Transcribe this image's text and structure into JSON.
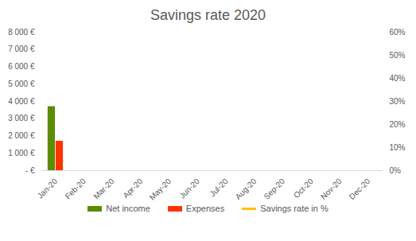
{
  "chart_data": {
    "type": "bar",
    "title": "Savings rate 2020",
    "categories": [
      "Jan-20",
      "Feb-20",
      "Mar-20",
      "Apr-20",
      "May-20",
      "Jun-20",
      "Jul-20",
      "Aug-20",
      "Sep-20",
      "Oct-20",
      "Nov-20",
      "Dec-20"
    ],
    "series": [
      {
        "name": "Net income",
        "type": "bar",
        "color": "#5b8c00",
        "values": [
          3700,
          null,
          null,
          null,
          null,
          null,
          null,
          null,
          null,
          null,
          null,
          null
        ]
      },
      {
        "name": "Expenses",
        "type": "bar",
        "color": "#ff3300",
        "values": [
          1700,
          null,
          null,
          null,
          null,
          null,
          null,
          null,
          null,
          null,
          null,
          null
        ]
      },
      {
        "name": "Savings rate in %",
        "type": "line",
        "axis": "y2",
        "color": "#ffc000",
        "values": [
          null,
          null,
          null,
          null,
          null,
          null,
          null,
          null,
          null,
          null,
          null,
          null
        ]
      }
    ],
    "ylim": [
      0,
      8000
    ],
    "yticks": [
      {
        "value": 0,
        "label": "- €"
      },
      {
        "value": 1000,
        "label": "1 000 €"
      },
      {
        "value": 2000,
        "label": "2 000 €"
      },
      {
        "value": 3000,
        "label": "3 000 €"
      },
      {
        "value": 4000,
        "label": "4 000 €"
      },
      {
        "value": 5000,
        "label": "5 000 €"
      },
      {
        "value": 6000,
        "label": "6 000 €"
      },
      {
        "value": 7000,
        "label": "7 000 €"
      },
      {
        "value": 8000,
        "label": "8 000 €"
      }
    ],
    "y2lim": [
      0,
      60
    ],
    "y2ticks": [
      {
        "value": 0,
        "label": "0%"
      },
      {
        "value": 10,
        "label": "10%"
      },
      {
        "value": 20,
        "label": "20%"
      },
      {
        "value": 30,
        "label": "30%"
      },
      {
        "value": 40,
        "label": "40%"
      },
      {
        "value": 50,
        "label": "50%"
      },
      {
        "value": 60,
        "label": "60%"
      }
    ],
    "grid": false,
    "legend": "bottom"
  }
}
